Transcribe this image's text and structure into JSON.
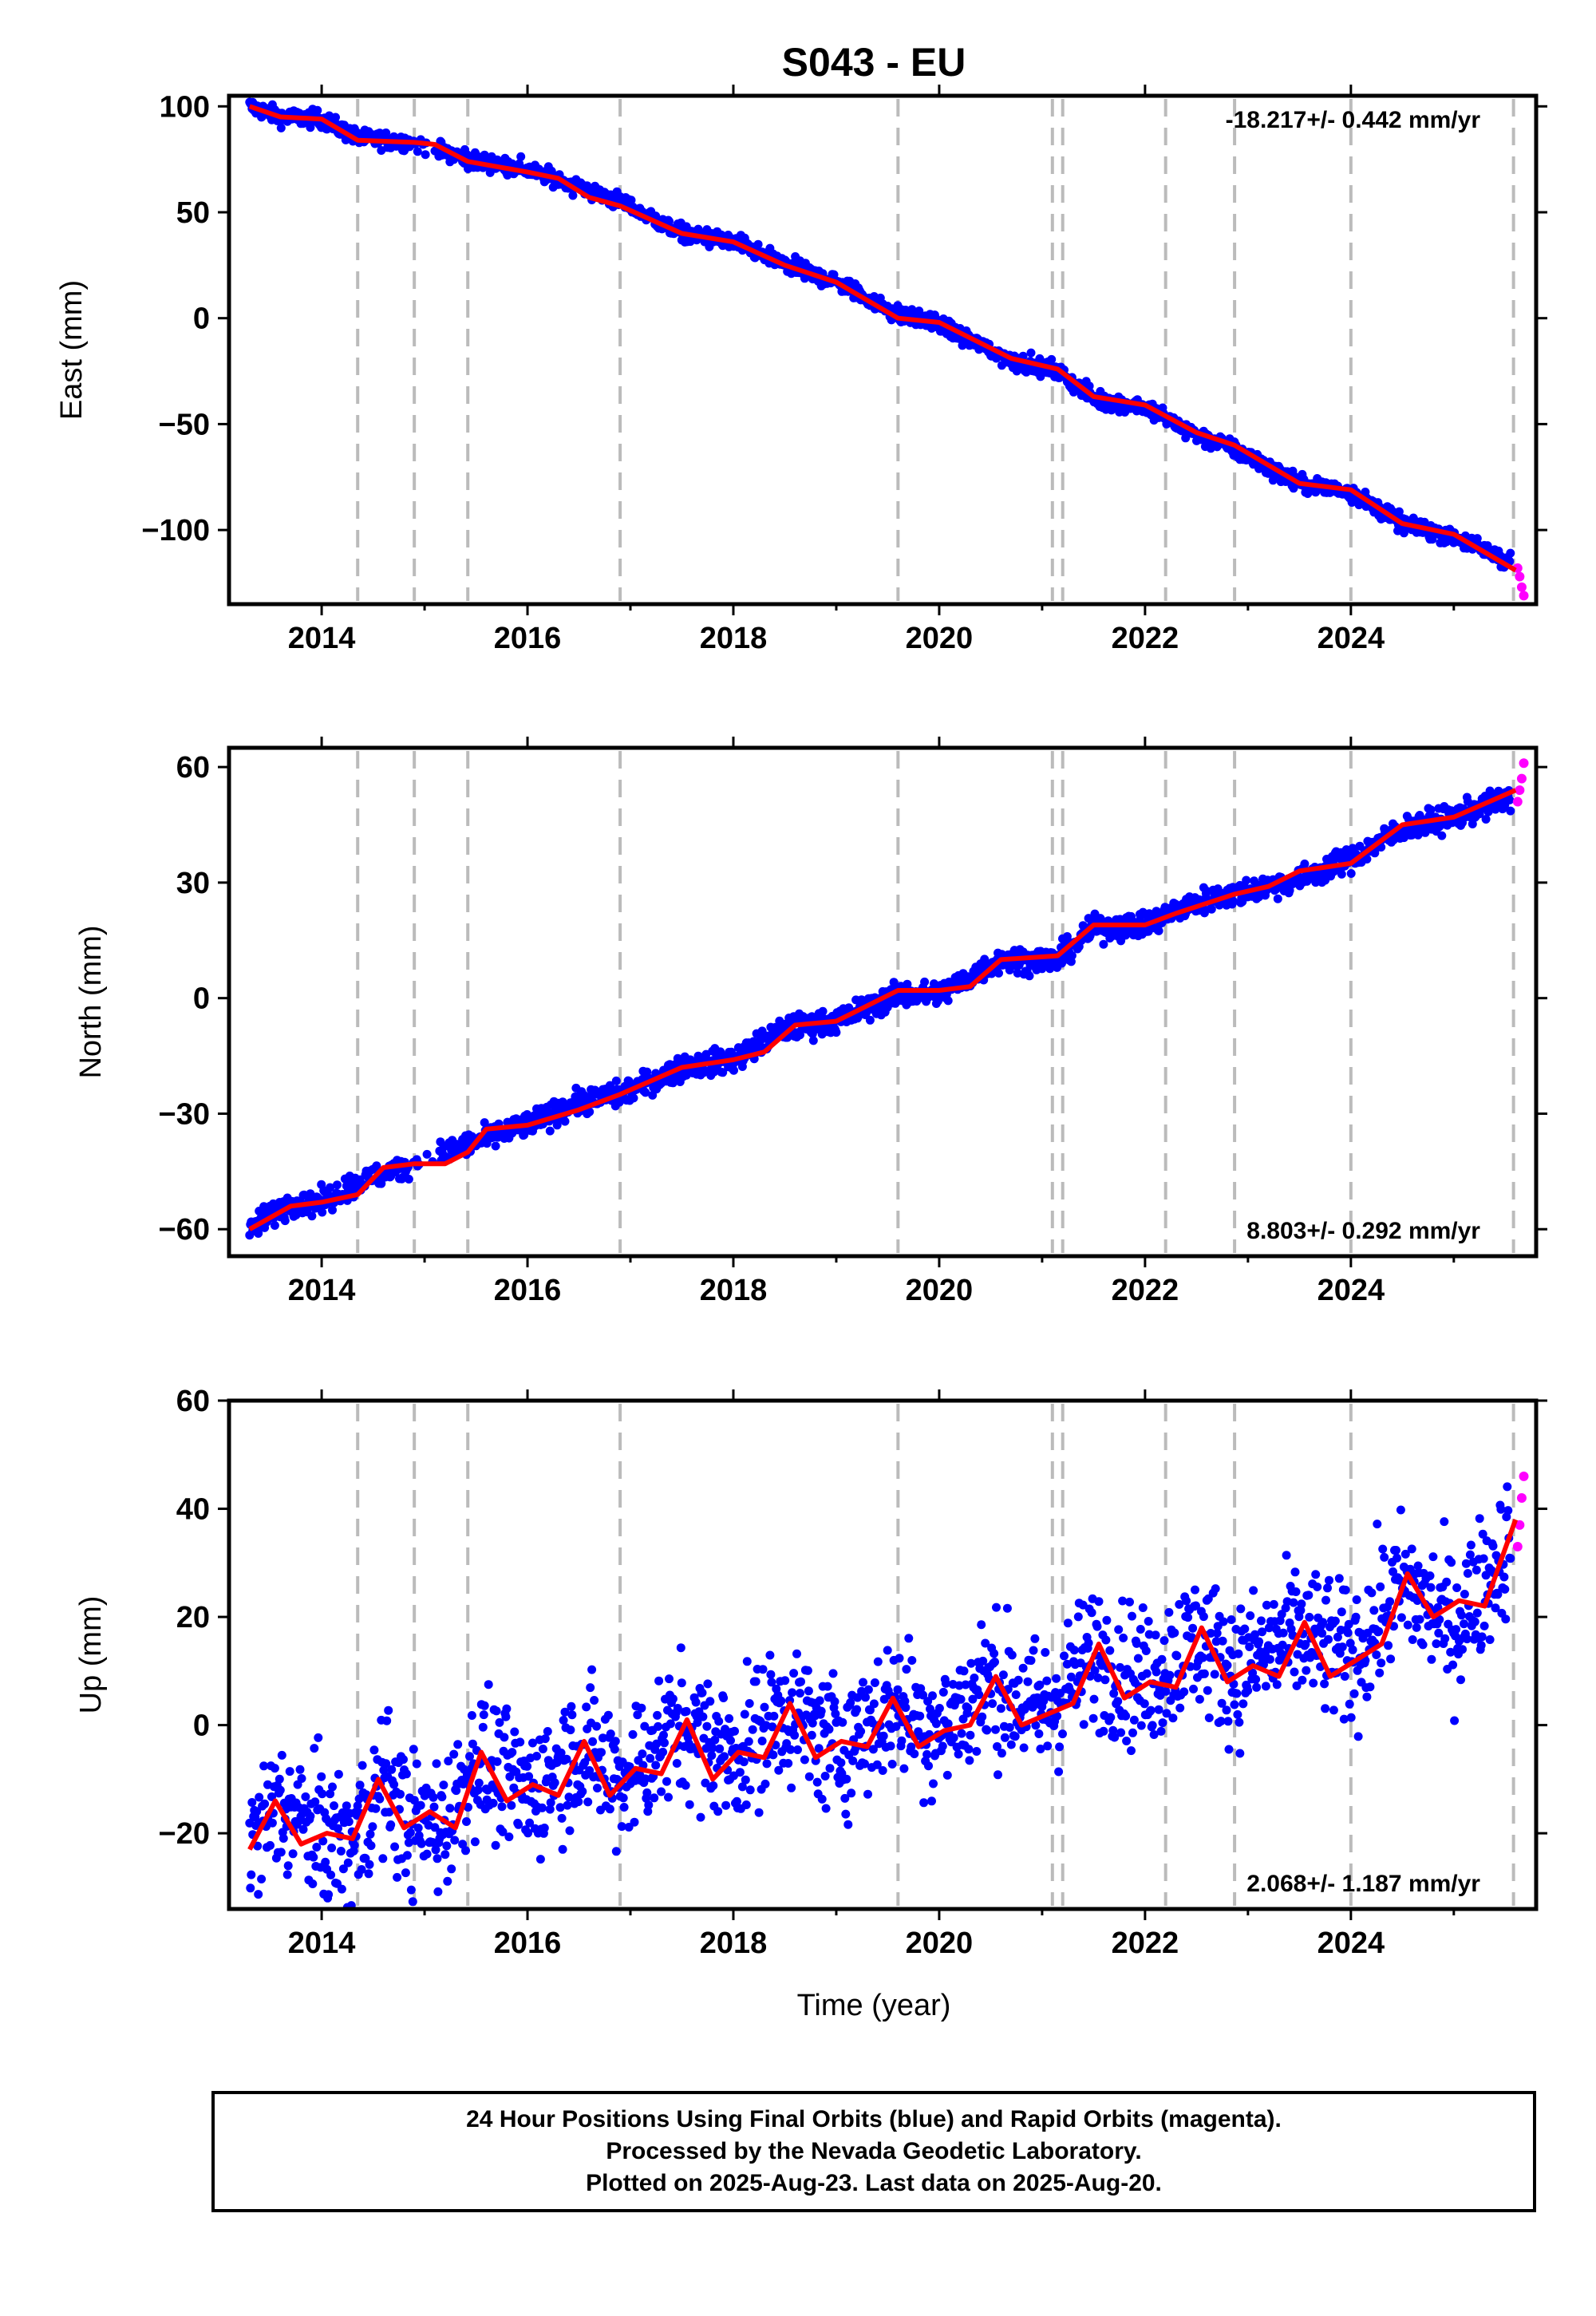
{
  "title": "S043 - EU",
  "xlabel": "Time (year)",
  "colors": {
    "final": "#0000ff",
    "rapid": "#ff00ff",
    "model": "#ff0000",
    "gridline": "#bbbbbb"
  },
  "chart_data": [
    {
      "type": "scatter",
      "panel": "east",
      "ylabel": "East (mm)",
      "rate_text": "-18.217+/- 0.442 mm/yr",
      "rate_position": "top-right",
      "xlim": [
        2013.1,
        2025.8
      ],
      "ylim": [
        -135,
        105
      ],
      "yticks": [
        -100,
        -50,
        0,
        50,
        100
      ],
      "xticks": [
        2014,
        2016,
        2018,
        2020,
        2022,
        2024
      ],
      "equipment_changes": [
        2014.35,
        2014.9,
        2015.42,
        2016.9,
        2019.6,
        2021.1,
        2021.2,
        2022.2,
        2022.87,
        2024.0,
        2025.58
      ],
      "series": [
        {
          "role": "final",
          "x": [
            2013.3,
            2013.6,
            2014.0,
            2014.35,
            2014.9,
            2015.42,
            2016.0,
            2016.5,
            2016.9,
            2017.5,
            2018.0,
            2018.5,
            2019.0,
            2019.6,
            2020.0,
            2020.7,
            2021.15,
            2021.5,
            2022.0,
            2022.5,
            2022.87,
            2023.5,
            2024.0,
            2024.5,
            2025.0,
            2025.55
          ],
          "y": [
            100,
            95,
            94,
            85,
            83,
            75,
            70,
            62,
            55,
            40,
            36,
            25,
            17,
            2,
            -3,
            -20,
            -25,
            -38,
            -42,
            -55,
            -62,
            -78,
            -82,
            -97,
            -103,
            -115
          ]
        },
        {
          "role": "rapid",
          "x": [
            2025.62,
            2025.64,
            2025.66,
            2025.68
          ],
          "y": [
            -118,
            -122,
            -127,
            -131
          ]
        },
        {
          "role": "model",
          "x": [
            2013.3,
            2013.6,
            2014.0,
            2014.35,
            2014.9,
            2015.1,
            2015.42,
            2016.0,
            2016.3,
            2016.6,
            2016.9,
            2017.5,
            2018.0,
            2018.5,
            2019.0,
            2019.6,
            2020.0,
            2020.7,
            2021.15,
            2021.5,
            2022.0,
            2022.5,
            2022.87,
            2023.5,
            2024.0,
            2024.5,
            2025.0,
            2025.6
          ],
          "y": [
            100,
            95,
            94,
            84,
            83,
            82,
            74,
            69,
            66,
            57,
            53,
            40,
            36,
            25,
            17,
            0,
            -2,
            -19,
            -24,
            -37,
            -41,
            -54,
            -60,
            -78,
            -81,
            -97,
            -102,
            -119
          ]
        }
      ]
    },
    {
      "type": "scatter",
      "panel": "north",
      "ylabel": "North (mm)",
      "rate_text": "8.803+/- 0.292 mm/yr",
      "rate_position": "bottom-right",
      "xlim": [
        2013.1,
        2025.8
      ],
      "ylim": [
        -67,
        65
      ],
      "yticks": [
        -60,
        -30,
        0,
        30,
        60
      ],
      "xticks": [
        2014,
        2016,
        2018,
        2020,
        2022,
        2024
      ],
      "equipment_changes": [
        2014.35,
        2014.9,
        2015.42,
        2016.9,
        2019.6,
        2021.1,
        2021.2,
        2022.2,
        2022.87,
        2024.0,
        2025.58
      ],
      "series": [
        {
          "role": "final",
          "x": [
            2013.3,
            2013.7,
            2014.0,
            2014.35,
            2014.9,
            2015.42,
            2016.0,
            2016.5,
            2016.9,
            2017.5,
            2018.0,
            2018.5,
            2019.0,
            2019.6,
            2020.0,
            2020.6,
            2021.15,
            2021.5,
            2022.0,
            2022.5,
            2022.87,
            2023.5,
            2024.0,
            2024.5,
            2025.0,
            2025.55
          ],
          "y": [
            -60,
            -53,
            -53,
            -48,
            -43,
            -38,
            -33,
            -27,
            -25,
            -18,
            -16,
            -8,
            -6,
            1,
            1,
            10,
            10,
            18,
            19,
            25,
            27,
            31,
            36,
            44,
            47,
            52
          ]
        },
        {
          "role": "rapid",
          "x": [
            2025.62,
            2025.64,
            2025.66,
            2025.68
          ],
          "y": [
            51,
            54,
            57,
            61
          ]
        },
        {
          "role": "model",
          "x": [
            2013.3,
            2013.7,
            2014.0,
            2014.35,
            2014.6,
            2014.9,
            2015.2,
            2015.42,
            2015.6,
            2016.0,
            2016.5,
            2016.9,
            2017.5,
            2018.0,
            2018.3,
            2018.6,
            2019.0,
            2019.6,
            2020.0,
            2020.3,
            2020.6,
            2021.15,
            2021.5,
            2022.0,
            2022.3,
            2022.87,
            2023.2,
            2023.5,
            2024.0,
            2024.5,
            2025.0,
            2025.6
          ],
          "y": [
            -60,
            -54,
            -53,
            -51,
            -44,
            -43,
            -43,
            -40,
            -34,
            -33,
            -29,
            -25,
            -18,
            -16,
            -14,
            -7,
            -6,
            2,
            2,
            3,
            10,
            11,
            19,
            19,
            22,
            27,
            29,
            33,
            35,
            45,
            47,
            54
          ]
        }
      ]
    },
    {
      "type": "scatter",
      "panel": "up",
      "ylabel": "Up (mm)",
      "rate_text": "2.068+/- 1.187 mm/yr",
      "rate_position": "bottom-right",
      "xlim": [
        2013.1,
        2025.8
      ],
      "ylim": [
        -34,
        60
      ],
      "yticks": [
        -20,
        0,
        20,
        40,
        60
      ],
      "xticks": [
        2014,
        2016,
        2018,
        2020,
        2022,
        2024
      ],
      "equipment_changes": [
        2014.35,
        2014.9,
        2015.42,
        2016.9,
        2019.6,
        2021.1,
        2021.2,
        2022.2,
        2022.87,
        2024.0,
        2025.58
      ],
      "series": [
        {
          "role": "final",
          "x": [
            2013.3,
            2013.6,
            2014.0,
            2014.3,
            2014.6,
            2014.9,
            2015.2,
            2015.5,
            2016.0,
            2016.5,
            2016.9,
            2017.5,
            2018.0,
            2018.5,
            2019.0,
            2019.6,
            2020.0,
            2020.5,
            2021.0,
            2021.5,
            2022.0,
            2022.5,
            2022.87,
            2023.5,
            2024.0,
            2024.5,
            2025.0,
            2025.55
          ],
          "y": [
            -22,
            -15,
            -20,
            -22,
            -10,
            -19,
            -18,
            -6,
            -13,
            -4,
            -10,
            0,
            -6,
            3,
            -4,
            4,
            -1,
            8,
            2,
            13,
            8,
            16,
            10,
            17,
            12,
            26,
            18,
            34
          ]
        },
        {
          "role": "rapid",
          "x": [
            2025.62,
            2025.64,
            2025.66,
            2025.68
          ],
          "y": [
            33,
            37,
            42,
            46
          ]
        },
        {
          "role": "model",
          "x": [
            2013.3,
            2013.55,
            2013.8,
            2014.05,
            2014.3,
            2014.55,
            2014.8,
            2015.05,
            2015.3,
            2015.55,
            2015.8,
            2016.05,
            2016.3,
            2016.55,
            2016.8,
            2017.05,
            2017.3,
            2017.55,
            2017.8,
            2018.05,
            2018.3,
            2018.55,
            2018.8,
            2019.05,
            2019.3,
            2019.55,
            2019.8,
            2020.05,
            2020.3,
            2020.55,
            2020.8,
            2021.05,
            2021.3,
            2021.55,
            2021.8,
            2022.05,
            2022.3,
            2022.55,
            2022.8,
            2023.05,
            2023.3,
            2023.55,
            2023.8,
            2024.05,
            2024.3,
            2024.55,
            2024.8,
            2025.05,
            2025.3,
            2025.6
          ],
          "y": [
            -23,
            -14,
            -22,
            -20,
            -21,
            -10,
            -19,
            -16,
            -19,
            -5,
            -14,
            -11,
            -13,
            -3,
            -13,
            -8,
            -9,
            1,
            -10,
            -5,
            -6,
            4,
            -6,
            -3,
            -4,
            5,
            -4,
            -1,
            0,
            9,
            0,
            2,
            4,
            15,
            5,
            8,
            7,
            18,
            8,
            11,
            9,
            19,
            9,
            12,
            15,
            28,
            20,
            23,
            22,
            38
          ]
        }
      ]
    }
  ],
  "footer": {
    "line1": "24 Hour Positions Using Final Orbits (blue) and Rapid Orbits (magenta).",
    "line2": "Processed by the Nevada Geodetic Laboratory.",
    "line3": "Plotted on 2025-Aug-23. Last data on 2025-Aug-20."
  }
}
